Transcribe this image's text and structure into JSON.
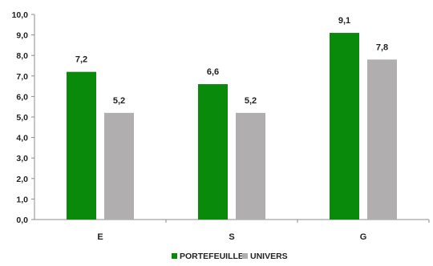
{
  "chart_data": {
    "type": "bar",
    "categories": [
      "E",
      "S",
      "G"
    ],
    "series": [
      {
        "name": "PORTEFEUILLE",
        "values": [
          7.2,
          6.6,
          9.1
        ],
        "color": "#0a8a0a"
      },
      {
        "name": "UNIVERS",
        "values": [
          5.2,
          5.2,
          7.8
        ],
        "color": "#b0aeae"
      }
    ],
    "y_ticks": [
      "0,0",
      "1,0",
      "2,0",
      "3,0",
      "4,0",
      "5,0",
      "6,0",
      "7,0",
      "8,0",
      "9,0",
      "10,0"
    ],
    "ylim": [
      0,
      10
    ],
    "grid": false,
    "legend": "bottom-center",
    "data_labels": true,
    "decimal_separator": ","
  }
}
